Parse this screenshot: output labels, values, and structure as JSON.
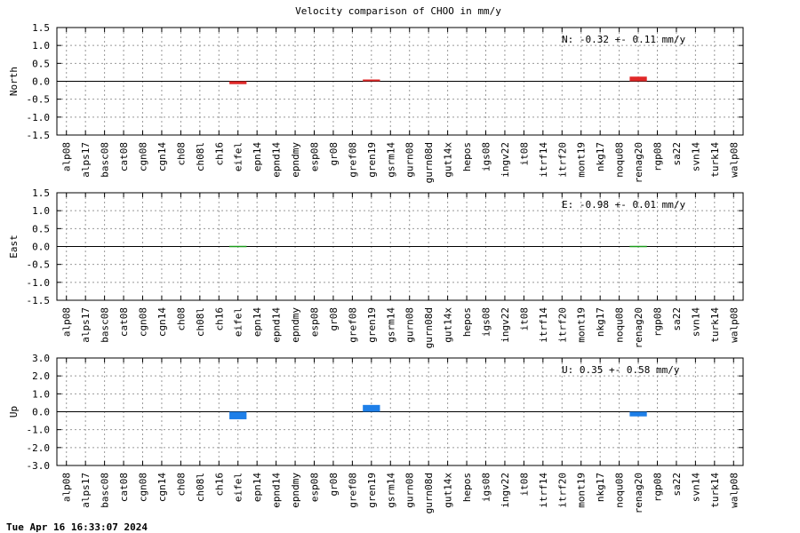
{
  "title": "Velocity comparison of CHOO in mm/y",
  "timestamp": "Tue Apr 16 16:33:07 2024",
  "colors": {
    "north": "#e02828",
    "east": "#1a9a1a",
    "up": "#1e7fe8",
    "grid": "#999999"
  },
  "chart_data": [
    {
      "type": "bar",
      "ylabel": "North",
      "ylim": [
        -1.5,
        1.5
      ],
      "yticks": [
        "-1.5",
        "-1.0",
        "-0.5",
        "0.0",
        "0.5",
        "1.0",
        "1.5"
      ],
      "annotation": "N:  -0.32 +-  0.11 mm/y",
      "categories": [
        "alp08",
        "alps17",
        "basc08",
        "cat08",
        "cgn08",
        "cgn14",
        "ch08",
        "ch08l",
        "ch16",
        "eifel",
        "epn14",
        "epnd14",
        "epndmy",
        "esp08",
        "gr08",
        "gref08",
        "gren19",
        "gsrm14",
        "gurn08",
        "gurn08d",
        "gut14x",
        "hepos",
        "igs08",
        "ingv22",
        "it08",
        "itrf14",
        "itrf20",
        "mont19",
        "nkg17",
        "noqu08",
        "renag20",
        "rgp08",
        "sa22",
        "svn14",
        "turk14",
        "walp08"
      ],
      "bars": [
        {
          "category": "eifel",
          "value": -0.08
        },
        {
          "category": "gren19",
          "value": 0.05
        },
        {
          "category": "renag20",
          "value": 0.13
        }
      ]
    },
    {
      "type": "bar",
      "ylabel": "East",
      "ylim": [
        -1.5,
        1.5
      ],
      "yticks": [
        "-1.5",
        "-1.0",
        "-0.5",
        "0.0",
        "0.5",
        "1.0",
        "1.5"
      ],
      "annotation": "E:  -0.98 +-  0.01 mm/y",
      "categories": [
        "alp08",
        "alps17",
        "basc08",
        "cat08",
        "cgn08",
        "cgn14",
        "ch08",
        "ch08l",
        "ch16",
        "eifel",
        "epn14",
        "epnd14",
        "epndmy",
        "esp08",
        "gr08",
        "gref08",
        "gren19",
        "gsrm14",
        "gurn08",
        "gurn08d",
        "gut14x",
        "hepos",
        "igs08",
        "ingv22",
        "it08",
        "itrf14",
        "itrf20",
        "mont19",
        "nkg17",
        "noqu08",
        "renag20",
        "rgp08",
        "sa22",
        "svn14",
        "turk14",
        "walp08"
      ],
      "bars": [
        {
          "category": "eifel",
          "value": -0.01
        },
        {
          "category": "renag20",
          "value": -0.01
        }
      ]
    },
    {
      "type": "bar",
      "ylabel": "Up",
      "ylim": [
        -3.0,
        3.0
      ],
      "yticks": [
        "-3.0",
        "-2.0",
        "-1.0",
        "0.0",
        "1.0",
        "2.0",
        "3.0"
      ],
      "annotation": "U:   0.35 +-  0.58 mm/y",
      "categories": [
        "alp08",
        "alps17",
        "basc08",
        "cat08",
        "cgn08",
        "cgn14",
        "ch08",
        "ch08l",
        "ch16",
        "eifel",
        "epn14",
        "epnd14",
        "epndmy",
        "esp08",
        "gr08",
        "gref08",
        "gren19",
        "gsrm14",
        "gurn08",
        "gurn08d",
        "gut14x",
        "hepos",
        "igs08",
        "ingv22",
        "it08",
        "itrf14",
        "itrf20",
        "mont19",
        "nkg17",
        "noqu08",
        "renag20",
        "rgp08",
        "sa22",
        "svn14",
        "turk14",
        "walp08"
      ],
      "bars": [
        {
          "category": "eifel",
          "value": -0.42
        },
        {
          "category": "gren19",
          "value": 0.38
        },
        {
          "category": "renag20",
          "value": -0.26
        }
      ]
    }
  ]
}
